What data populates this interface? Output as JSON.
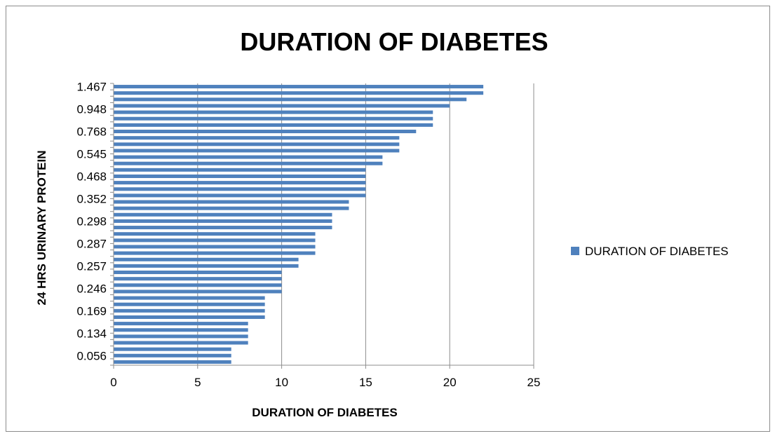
{
  "chart_data": {
    "type": "bar",
    "orientation": "horizontal",
    "title": "DURATION OF DIABETES",
    "xlabel": "DURATION OF DIABETES",
    "ylabel": "24 HRS URINARY PROTEIN",
    "xlim": [
      0,
      25
    ],
    "xticks": [
      0,
      5,
      10,
      15,
      20,
      25
    ],
    "yticks": [
      "1.467",
      "0.948",
      "0.768",
      "0.545",
      "0.468",
      "0.352",
      "0.298",
      "0.287",
      "0.257",
      "0.246",
      "0.169",
      "0.134",
      "0.056"
    ],
    "grid": "vertical",
    "legend_position": "right",
    "series": [
      {
        "name": "DURATION OF DIABETES",
        "color": "#4f81bd",
        "values": [
          7,
          7,
          7,
          8,
          8,
          8,
          8,
          9,
          9,
          9,
          9,
          10,
          10,
          10,
          10,
          11,
          11,
          12,
          12,
          12,
          12,
          13,
          13,
          13,
          14,
          14,
          15,
          15,
          15,
          15,
          15,
          16,
          16,
          17,
          17,
          17,
          18,
          19,
          19,
          19,
          20,
          21,
          22,
          22
        ]
      }
    ]
  }
}
